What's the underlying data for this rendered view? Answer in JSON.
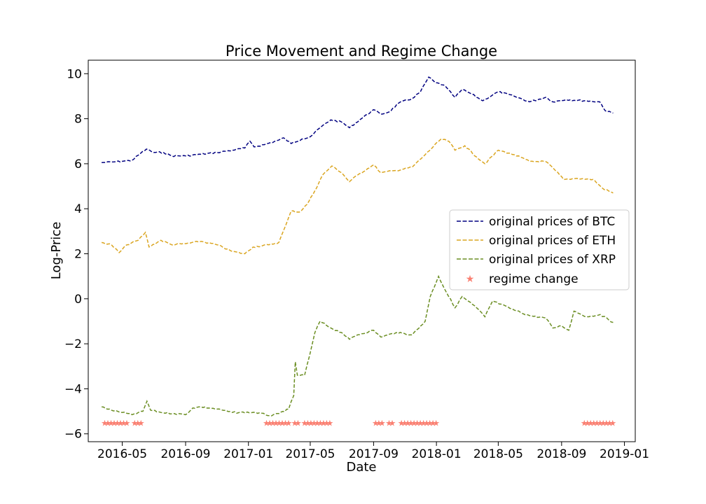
{
  "chart_data": {
    "type": "line",
    "title": "Price Movement and Regime Change",
    "xlabel": "Date",
    "ylabel": "Log-Price",
    "xlim": [
      "2016-02-25",
      "2019-01-22"
    ],
    "ylim": [
      -6.35,
      10.6
    ],
    "x_ticks": [
      "2016-05",
      "2016-09",
      "2017-01",
      "2017-05",
      "2017-09",
      "2018-01",
      "2018-05",
      "2018-09",
      "2019-01"
    ],
    "y_ticks": [
      -6,
      -4,
      -2,
      0,
      2,
      4,
      6,
      8,
      10
    ],
    "y_tick_labels": [
      "−6",
      "−4",
      "−2",
      "0",
      "2",
      "4",
      "6",
      "8",
      "10"
    ],
    "grid": false,
    "legend_position": "center-right",
    "series": [
      {
        "name": "original prices of BTC",
        "color": "#000080",
        "style": "dashed",
        "points": [
          [
            "2016-03-22",
            6.05
          ],
          [
            "2016-04-15",
            6.08
          ],
          [
            "2016-05-05",
            6.12
          ],
          [
            "2016-05-20",
            6.15
          ],
          [
            "2016-06-05",
            6.45
          ],
          [
            "2016-06-17",
            6.65
          ],
          [
            "2016-07-01",
            6.5
          ],
          [
            "2016-07-20",
            6.5
          ],
          [
            "2016-08-05",
            6.35
          ],
          [
            "2016-09-01",
            6.35
          ],
          [
            "2016-10-01",
            6.42
          ],
          [
            "2016-11-01",
            6.5
          ],
          [
            "2016-12-01",
            6.6
          ],
          [
            "2016-12-25",
            6.7
          ],
          [
            "2017-01-04",
            7.0
          ],
          [
            "2017-01-12",
            6.75
          ],
          [
            "2017-02-01",
            6.85
          ],
          [
            "2017-03-01",
            7.05
          ],
          [
            "2017-03-10",
            7.15
          ],
          [
            "2017-03-25",
            6.9
          ],
          [
            "2017-04-15",
            7.1
          ],
          [
            "2017-05-01",
            7.2
          ],
          [
            "2017-05-20",
            7.6
          ],
          [
            "2017-06-10",
            7.95
          ],
          [
            "2017-07-01",
            7.85
          ],
          [
            "2017-07-16",
            7.6
          ],
          [
            "2017-08-05",
            7.95
          ],
          [
            "2017-09-01",
            8.4
          ],
          [
            "2017-09-15",
            8.2
          ],
          [
            "2017-10-01",
            8.3
          ],
          [
            "2017-10-20",
            8.7
          ],
          [
            "2017-11-15",
            8.9
          ],
          [
            "2017-12-01",
            9.2
          ],
          [
            "2017-12-17",
            9.85
          ],
          [
            "2017-12-30",
            9.6
          ],
          [
            "2018-01-15",
            9.5
          ],
          [
            "2018-02-06",
            8.95
          ],
          [
            "2018-02-20",
            9.3
          ],
          [
            "2018-03-10",
            9.1
          ],
          [
            "2018-04-01",
            8.8
          ],
          [
            "2018-05-01",
            9.2
          ],
          [
            "2018-06-01",
            9.0
          ],
          [
            "2018-07-01",
            8.75
          ],
          [
            "2018-08-01",
            8.95
          ],
          [
            "2018-08-15",
            8.75
          ],
          [
            "2018-09-10",
            8.85
          ],
          [
            "2018-10-15",
            8.8
          ],
          [
            "2018-11-14",
            8.75
          ],
          [
            "2018-11-25",
            8.35
          ],
          [
            "2018-12-10",
            8.25
          ]
        ]
      },
      {
        "name": "original prices of ETH",
        "color": "#DAA520",
        "style": "dashed",
        "points": [
          [
            "2016-03-22",
            2.5
          ],
          [
            "2016-04-10",
            2.4
          ],
          [
            "2016-04-25",
            2.05
          ],
          [
            "2016-05-10",
            2.4
          ],
          [
            "2016-06-01",
            2.6
          ],
          [
            "2016-06-15",
            2.95
          ],
          [
            "2016-06-22",
            2.3
          ],
          [
            "2016-07-15",
            2.6
          ],
          [
            "2016-08-05",
            2.4
          ],
          [
            "2016-09-01",
            2.45
          ],
          [
            "2016-10-01",
            2.55
          ],
          [
            "2016-11-01",
            2.4
          ],
          [
            "2016-12-01",
            2.1
          ],
          [
            "2016-12-25",
            2.0
          ],
          [
            "2017-01-10",
            2.3
          ],
          [
            "2017-02-10",
            2.4
          ],
          [
            "2017-03-01",
            2.5
          ],
          [
            "2017-03-15",
            3.3
          ],
          [
            "2017-03-25",
            3.9
          ],
          [
            "2017-04-10",
            3.85
          ],
          [
            "2017-04-25",
            4.2
          ],
          [
            "2017-05-10",
            4.8
          ],
          [
            "2017-05-25",
            5.5
          ],
          [
            "2017-06-12",
            5.9
          ],
          [
            "2017-07-01",
            5.6
          ],
          [
            "2017-07-16",
            5.2
          ],
          [
            "2017-08-01",
            5.5
          ],
          [
            "2017-09-01",
            5.95
          ],
          [
            "2017-09-15",
            5.6
          ],
          [
            "2017-10-15",
            5.7
          ],
          [
            "2017-11-15",
            5.85
          ],
          [
            "2017-12-10",
            6.4
          ],
          [
            "2018-01-10",
            7.1
          ],
          [
            "2018-01-25",
            7.0
          ],
          [
            "2018-02-06",
            6.6
          ],
          [
            "2018-02-25",
            6.8
          ],
          [
            "2018-03-20",
            6.3
          ],
          [
            "2018-04-05",
            6.0
          ],
          [
            "2018-05-01",
            6.6
          ],
          [
            "2018-06-01",
            6.4
          ],
          [
            "2018-07-01",
            6.1
          ],
          [
            "2018-08-01",
            6.1
          ],
          [
            "2018-08-20",
            5.7
          ],
          [
            "2018-09-05",
            5.3
          ],
          [
            "2018-10-01",
            5.35
          ],
          [
            "2018-11-01",
            5.3
          ],
          [
            "2018-11-20",
            4.9
          ],
          [
            "2018-12-10",
            4.7
          ]
        ]
      },
      {
        "name": "original prices of XRP",
        "color": "#6B8E23",
        "style": "dashed",
        "points": [
          [
            "2016-03-22",
            -4.8
          ],
          [
            "2016-04-10",
            -4.95
          ],
          [
            "2016-05-01",
            -5.05
          ],
          [
            "2016-05-20",
            -5.15
          ],
          [
            "2016-06-10",
            -5.0
          ],
          [
            "2016-06-18",
            -4.55
          ],
          [
            "2016-06-25",
            -4.95
          ],
          [
            "2016-07-15",
            -5.05
          ],
          [
            "2016-08-10",
            -5.1
          ],
          [
            "2016-09-01",
            -5.15
          ],
          [
            "2016-09-15",
            -4.85
          ],
          [
            "2016-10-01",
            -4.8
          ],
          [
            "2016-11-01",
            -4.9
          ],
          [
            "2016-12-01",
            -5.05
          ],
          [
            "2017-01-15",
            -5.05
          ],
          [
            "2017-02-15",
            -5.2
          ],
          [
            "2017-03-01",
            -5.1
          ],
          [
            "2017-03-20",
            -4.9
          ],
          [
            "2017-03-30",
            -4.3
          ],
          [
            "2017-04-02",
            -2.8
          ],
          [
            "2017-04-06",
            -3.4
          ],
          [
            "2017-04-20",
            -3.4
          ],
          [
            "2017-04-30",
            -2.5
          ],
          [
            "2017-05-10",
            -1.5
          ],
          [
            "2017-05-20",
            -1.0
          ],
          [
            "2017-06-10",
            -1.3
          ],
          [
            "2017-07-01",
            -1.5
          ],
          [
            "2017-07-16",
            -1.8
          ],
          [
            "2017-08-01",
            -1.6
          ],
          [
            "2017-09-01",
            -1.4
          ],
          [
            "2017-09-15",
            -1.7
          ],
          [
            "2017-10-15",
            -1.5
          ],
          [
            "2017-11-15",
            -1.6
          ],
          [
            "2017-12-10",
            -1.0
          ],
          [
            "2017-12-20",
            0.1
          ],
          [
            "2018-01-05",
            1.0
          ],
          [
            "2018-01-20",
            0.3
          ],
          [
            "2018-02-06",
            -0.4
          ],
          [
            "2018-02-20",
            0.1
          ],
          [
            "2018-03-20",
            -0.4
          ],
          [
            "2018-04-05",
            -0.8
          ],
          [
            "2018-04-20",
            -0.1
          ],
          [
            "2018-06-01",
            -0.5
          ],
          [
            "2018-07-01",
            -0.75
          ],
          [
            "2018-08-01",
            -0.85
          ],
          [
            "2018-08-15",
            -1.3
          ],
          [
            "2018-09-01",
            -1.2
          ],
          [
            "2018-09-15",
            -1.4
          ],
          [
            "2018-09-25",
            -0.55
          ],
          [
            "2018-10-20",
            -0.8
          ],
          [
            "2018-11-15",
            -0.7
          ],
          [
            "2018-12-10",
            -1.05
          ]
        ]
      }
    ],
    "regime_change": {
      "name": "regime change",
      "color": "#FA8072",
      "marker": "star",
      "y": -5.5,
      "intervals": [
        [
          "2016-03-28",
          "2016-05-10"
        ],
        [
          "2016-05-25",
          "2016-06-10"
        ],
        [
          "2017-02-05",
          "2017-03-25"
        ],
        [
          "2017-04-01",
          "2017-04-10"
        ],
        [
          "2017-04-20",
          "2017-06-10"
        ],
        [
          "2017-09-05",
          "2017-09-18"
        ],
        [
          "2017-10-01",
          "2017-10-12"
        ],
        [
          "2017-10-25",
          "2018-01-05"
        ],
        [
          "2018-10-15",
          "2018-12-15"
        ]
      ]
    }
  }
}
